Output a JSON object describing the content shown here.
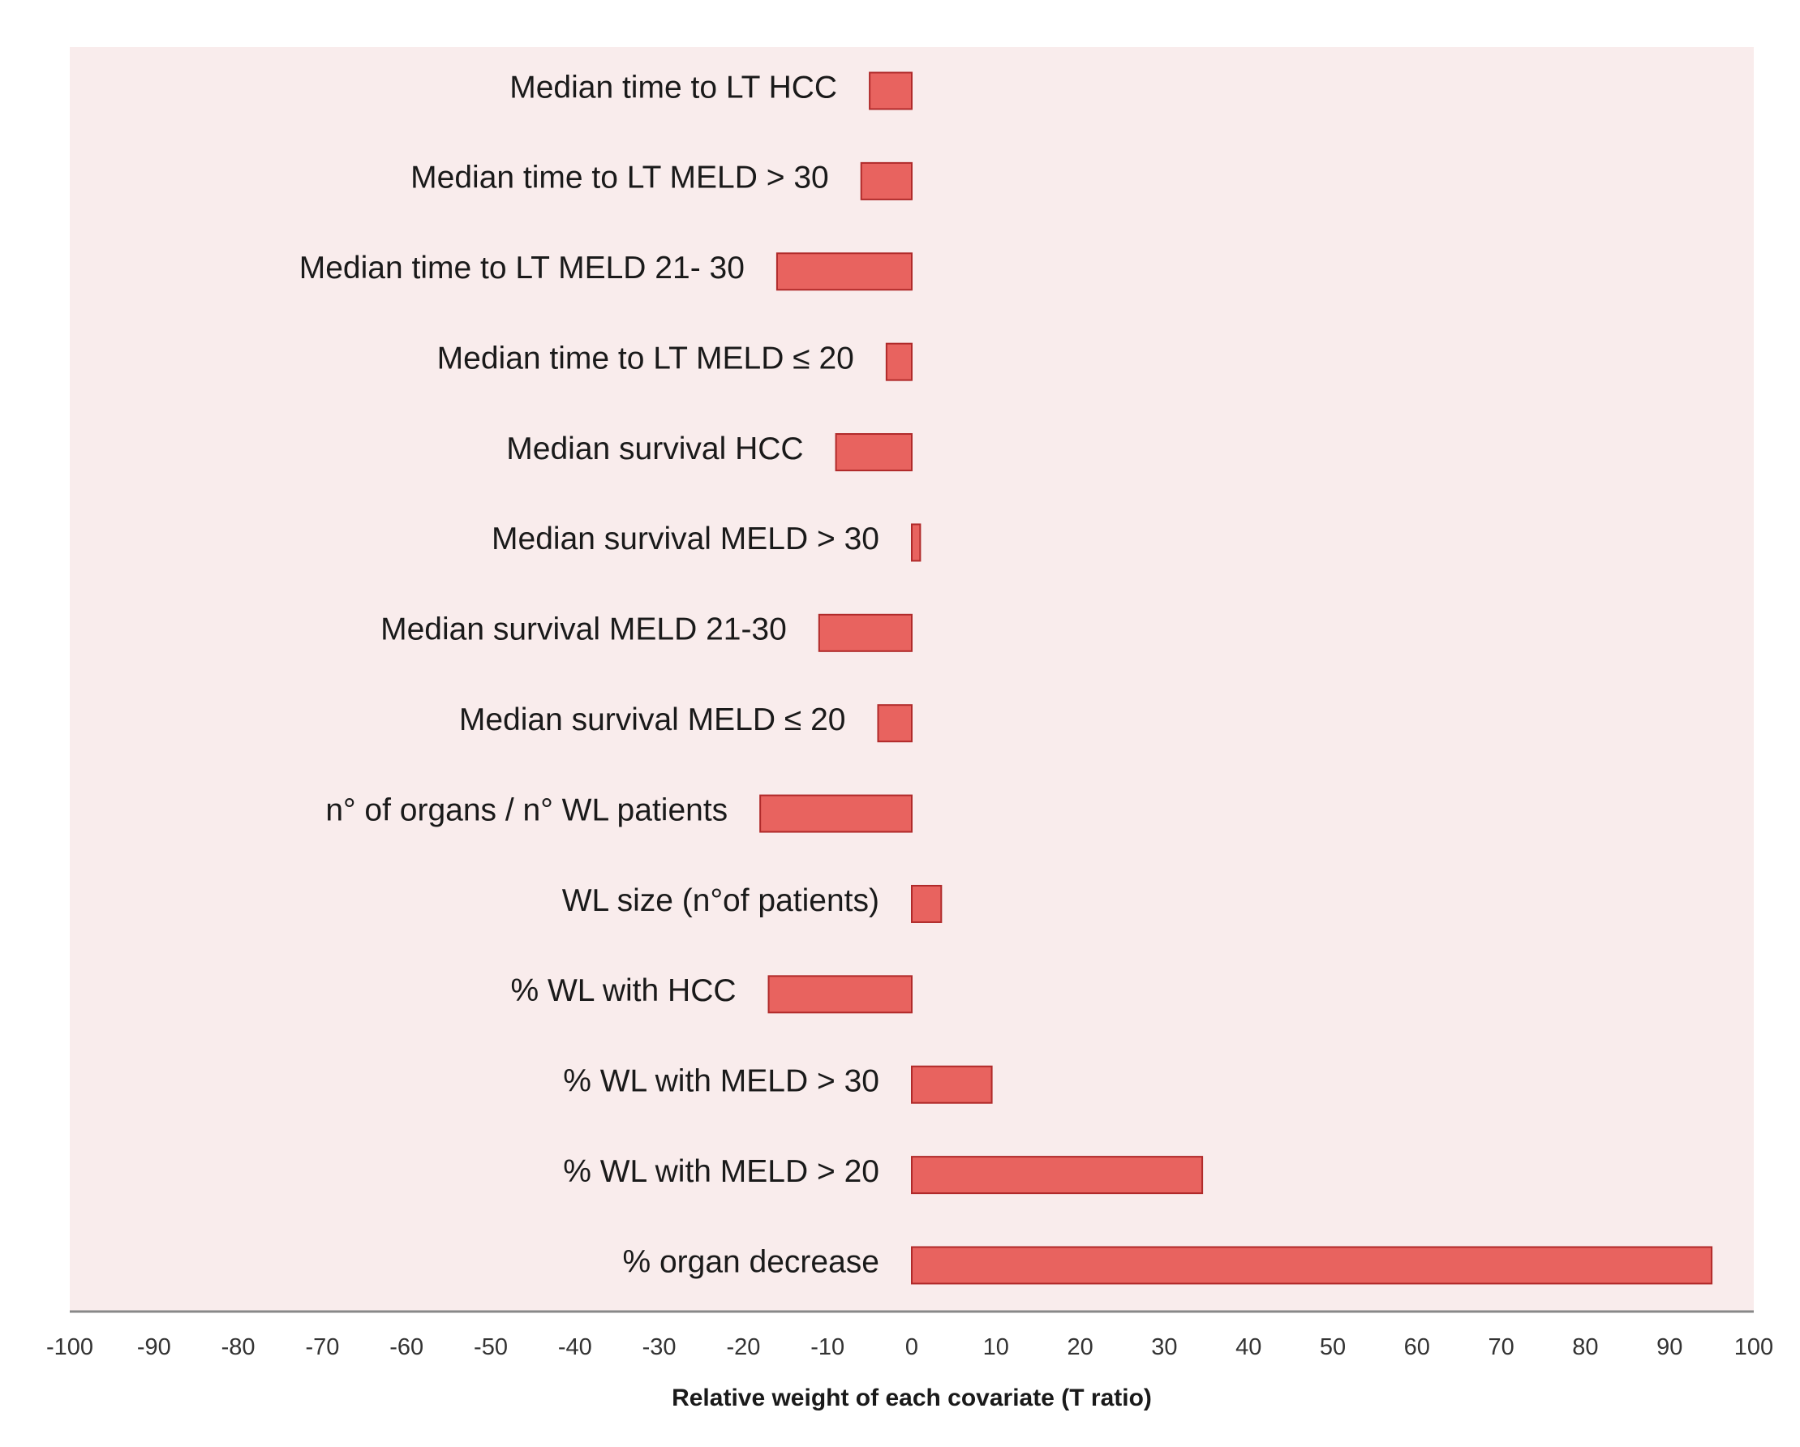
{
  "chart_data": {
    "type": "bar",
    "orientation": "horizontal",
    "title": "",
    "xlabel": "Relative weight of each covariate (T ratio)",
    "ylabel": "",
    "xlim": [
      -100,
      100
    ],
    "xticks": [
      -100,
      -90,
      -80,
      -70,
      -60,
      -50,
      -40,
      -30,
      -20,
      -10,
      0,
      10,
      20,
      30,
      40,
      50,
      60,
      70,
      80,
      90,
      100
    ],
    "grid": false,
    "legend": "none",
    "categories": [
      "Median time to LT HCC",
      "Median time to LT MELD > 30",
      "Median time to LT MELD 21- 30",
      "Median time to LT MELD ≤ 20",
      "Median survival HCC",
      "Median survival MELD > 30",
      "Median survival MELD 21-30",
      "Median survival MELD ≤ 20",
      "n° of organs / n° WL patients",
      "WL size (n°of  patients)",
      "% WL with HCC",
      "% WL with MELD > 30",
      "% WL with MELD > 20",
      "% organ decrease"
    ],
    "values": [
      -5,
      -6,
      -16,
      -3,
      -9,
      1,
      -11,
      -4,
      -18,
      3.5,
      -17,
      9.5,
      34.5,
      95
    ],
    "colors": {
      "bar": "#e8635f",
      "bar_edge": "#b02a2a",
      "plot_bg": "#f9ecec",
      "axis": "#888888"
    }
  }
}
